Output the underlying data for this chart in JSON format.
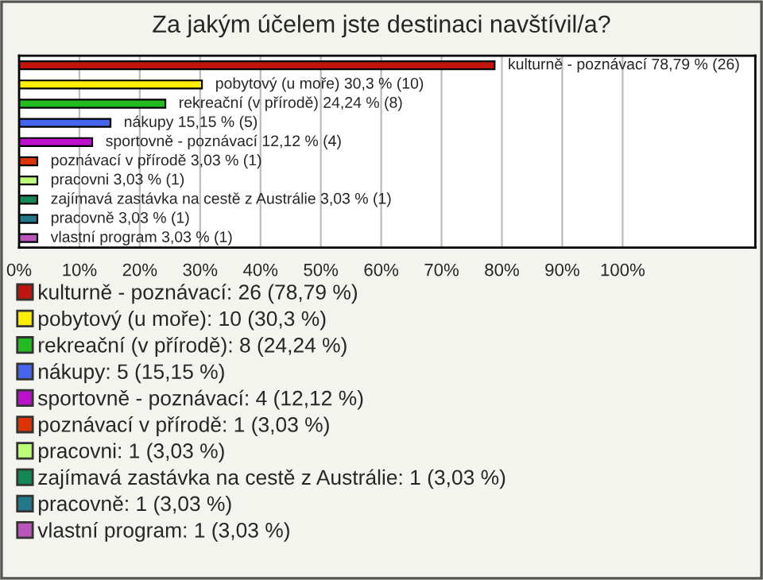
{
  "chart_data": {
    "type": "bar",
    "orientation": "horizontal",
    "title": "Za jakým účelem jste destinaci navštívil/a?",
    "categories": [
      null,
      null,
      null,
      null,
      null,
      null,
      null,
      null,
      null,
      null
    ],
    "series": [
      {
        "name": "kulturně - poznávací: 26 (78,79 %)",
        "color": "#c0140c",
        "values": [
          78.79,
          null,
          null,
          null,
          null,
          null,
          null,
          null,
          null,
          null
        ],
        "value_labels": [
          "kulturně - poznávací 78,79 % (26)",
          null,
          null,
          null,
          null,
          null,
          null,
          null,
          null,
          null
        ]
      },
      {
        "name": "pobytový (u moře): 10 (30,3 %)",
        "color": "#ffee00",
        "values": [
          null,
          30.3,
          null,
          null,
          null,
          null,
          null,
          null,
          null,
          null
        ],
        "value_labels": [
          null,
          "pobytový (u moře) 30,3 % (10)",
          null,
          null,
          null,
          null,
          null,
          null,
          null,
          null
        ]
      },
      {
        "name": "rekreační (v přírodě): 8 (24,24 %)",
        "color": "#22bb22",
        "values": [
          null,
          null,
          24.24,
          null,
          null,
          null,
          null,
          null,
          null,
          null
        ],
        "value_labels": [
          null,
          null,
          "rekreační (v přírodě) 24,24 % (8)",
          null,
          null,
          null,
          null,
          null,
          null,
          null
        ]
      },
      {
        "name": "nákupy: 5 (15,15 %)",
        "color": "#4466ee",
        "values": [
          null,
          null,
          null,
          15.15,
          null,
          null,
          null,
          null,
          null,
          null
        ],
        "value_labels": [
          null,
          null,
          null,
          "nákupy 15,15 % (5)",
          null,
          null,
          null,
          null,
          null,
          null
        ]
      },
      {
        "name": "sportovně - poznávací: 4 (12,12 %)",
        "color": "#bb11cc",
        "values": [
          null,
          null,
          null,
          null,
          12.12,
          null,
          null,
          null,
          null,
          null
        ],
        "value_labels": [
          null,
          null,
          null,
          null,
          "sportovně - poznávací 12,12 % (4)",
          null,
          null,
          null,
          null,
          null
        ]
      },
      {
        "name": "poznávací v přírodě: 1 (3,03 %)",
        "color": "#dd3300",
        "values": [
          null,
          null,
          null,
          null,
          null,
          3.03,
          null,
          null,
          null,
          null
        ],
        "value_labels": [
          null,
          null,
          null,
          null,
          null,
          "poznávací v přírodě 3,03 % (1)",
          null,
          null,
          null,
          null
        ]
      },
      {
        "name": "pracovni: 1 (3,03 %)",
        "color": "#bbff77",
        "values": [
          null,
          null,
          null,
          null,
          null,
          null,
          3.03,
          null,
          null,
          null
        ],
        "value_labels": [
          null,
          null,
          null,
          null,
          null,
          null,
          "pracovni 3,03 % (1)",
          null,
          null,
          null
        ]
      },
      {
        "name": "zajímavá zastávka na cestě z Austrálie: 1 (3,03 %)",
        "color": "#118855",
        "values": [
          null,
          null,
          null,
          null,
          null,
          null,
          null,
          3.03,
          null,
          null
        ],
        "value_labels": [
          null,
          null,
          null,
          null,
          null,
          null,
          null,
          "zajímavá zastávka na cestě z Austrálie 3,03 % (1)",
          null,
          null
        ]
      },
      {
        "name": "pracovně: 1 (3,03 %)",
        "color": "#227788",
        "values": [
          null,
          null,
          null,
          null,
          null,
          null,
          null,
          null,
          3.03,
          null
        ],
        "value_labels": [
          null,
          null,
          null,
          null,
          null,
          null,
          null,
          null,
          "pracovně 3,03 % (1)",
          null
        ]
      },
      {
        "name": "vlastní program: 1 (3,03 %)",
        "color": "#bb55bb",
        "values": [
          null,
          null,
          null,
          null,
          null,
          null,
          null,
          null,
          null,
          3.03
        ],
        "value_labels": [
          null,
          null,
          null,
          null,
          null,
          null,
          null,
          null,
          null,
          "vlastní program 3,03 % (1)"
        ]
      }
    ],
    "xlim": [
      0,
      122
    ],
    "xticks": [
      {
        "value": 0,
        "label": "0%"
      },
      {
        "value": 10,
        "label": "10%"
      },
      {
        "value": 20,
        "label": "20%"
      },
      {
        "value": 30,
        "label": "30%"
      },
      {
        "value": 40,
        "label": "40%"
      },
      {
        "value": 50,
        "label": "50%"
      },
      {
        "value": 60,
        "label": "60%"
      },
      {
        "value": 70,
        "label": "70%"
      },
      {
        "value": 80,
        "label": "80%"
      },
      {
        "value": 90,
        "label": "90%"
      },
      {
        "value": 100,
        "label": "100%"
      }
    ],
    "grid": "x",
    "legend": "bottom",
    "tick_labels": "x"
  }
}
